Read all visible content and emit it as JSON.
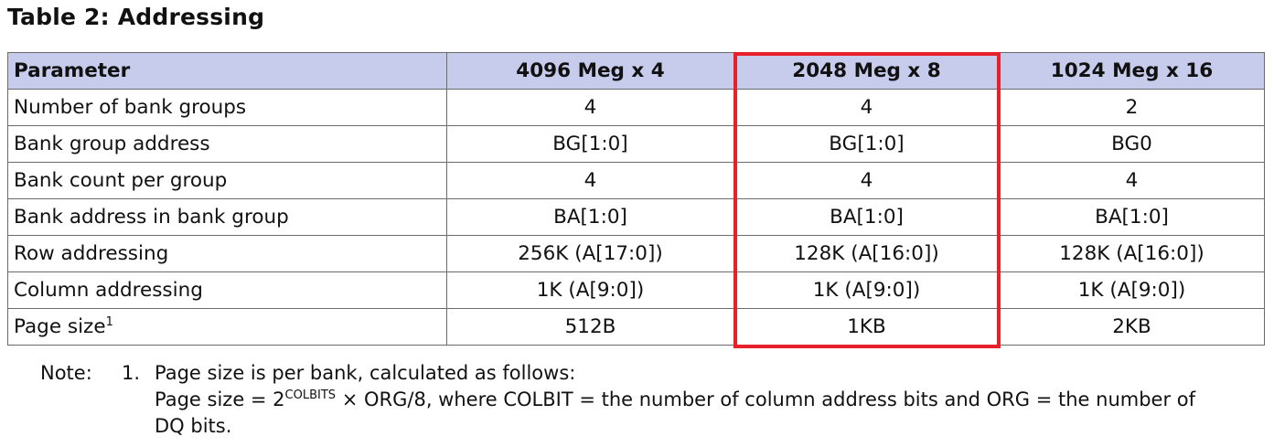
{
  "title": "Table 2: Addressing",
  "table": {
    "headers": [
      "Parameter",
      "4096 Meg x 4",
      "2048 Meg x 8",
      "1024 Meg x 16"
    ],
    "rows": [
      {
        "param": "Number of bank groups",
        "sup": "",
        "values": [
          "4",
          "4",
          "2"
        ]
      },
      {
        "param": "Bank group address",
        "sup": "",
        "values": [
          "BG[1:0]",
          "BG[1:0]",
          "BG0"
        ]
      },
      {
        "param": "Bank count per group",
        "sup": "",
        "values": [
          "4",
          "4",
          "4"
        ]
      },
      {
        "param": "Bank address in bank group",
        "sup": "",
        "values": [
          "BA[1:0]",
          "BA[1:0]",
          "BA[1:0]"
        ]
      },
      {
        "param": "Row addressing",
        "sup": "",
        "values": [
          "256K (A[17:0])",
          "128K (A[16:0])",
          "128K (A[16:0])"
        ]
      },
      {
        "param": "Column addressing",
        "sup": "",
        "values": [
          "1K (A[9:0])",
          "1K (A[9:0])",
          "1K (A[9:0])"
        ]
      },
      {
        "param": "Page size",
        "sup": "1",
        "values": [
          "512B",
          "1KB",
          "2KB"
        ]
      }
    ]
  },
  "highlight": {
    "column": "2048 Meg x 8",
    "color": "#e8202a"
  },
  "colors": {
    "header_background": "#c7cbec",
    "border": "#6b6b6b"
  },
  "note": {
    "label": "Note:",
    "number": "1.",
    "line1": "Page size is per bank, calculated as follows:",
    "line2_prefix": "Page size = 2",
    "line2_superscript": "COLBITS",
    "line2_suffix": " × ORG/8, where COLBIT = the number of column address bits and ORG = the number of",
    "line3": "DQ bits."
  }
}
